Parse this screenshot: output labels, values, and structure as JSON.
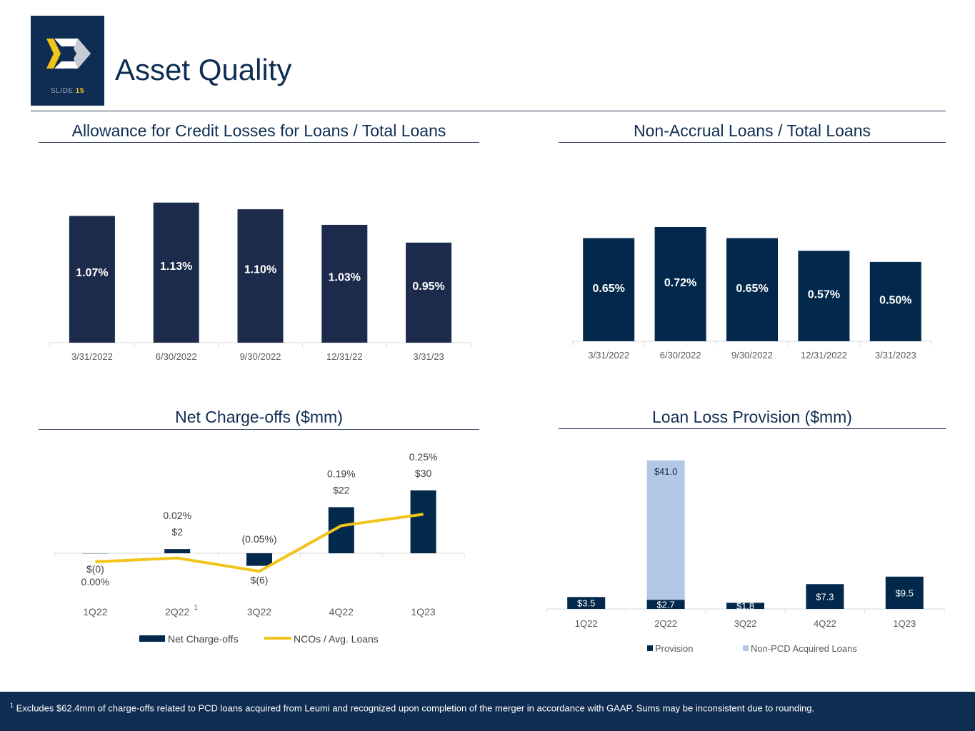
{
  "slide": {
    "label": "SLIDE",
    "number": "15",
    "title": "Asset Quality",
    "colors": {
      "navy": "#0f2d52",
      "navy_bar": "#1c2a4c",
      "gold": "#f2c318",
      "light_blue": "#b4c7e7"
    }
  },
  "sections": {
    "acl": "Allowance for Credit Losses for Loans / Total Loans",
    "nonaccrual": "Non-Accrual Loans / Total Loans",
    "nco": "Net Charge-offs ($mm)",
    "provision": "Loan Loss Provision ($mm)"
  },
  "footnote": {
    "marker": "1",
    "text": "Excludes $62.4mm of charge-offs related to PCD loans acquired from Leumi and recognized upon completion of the merger in accordance with GAAP.  Sums may be inconsistent due to rounding."
  },
  "chart_data": [
    {
      "id": "acl",
      "type": "bar",
      "title": "Allowance for Credit Losses for Loans / Total Loans",
      "categories": [
        "3/31/2022",
        "6/30/2022",
        "9/30/2022",
        "12/31/22",
        "3/31/23"
      ],
      "values": [
        1.07,
        1.13,
        1.1,
        1.03,
        0.95
      ],
      "labels": [
        "1.07%",
        "1.13%",
        "1.10%",
        "1.03%",
        "0.95%"
      ],
      "ylim": [
        0.5,
        1.2
      ]
    },
    {
      "id": "nonaccrual",
      "type": "bar",
      "title": "Non-Accrual Loans / Total Loans",
      "categories": [
        "3/31/2022",
        "6/30/2022",
        "9/30/2022",
        "12/31/2022",
        "3/31/2023"
      ],
      "values": [
        0.65,
        0.72,
        0.65,
        0.57,
        0.5
      ],
      "labels": [
        "0.65%",
        "0.72%",
        "0.65%",
        "0.57%",
        "0.50%"
      ],
      "ylim": [
        0,
        1.08
      ]
    },
    {
      "id": "nco",
      "type": "bar",
      "title": "Net Charge-offs ($mm)",
      "categories": [
        "1Q22",
        "2Q22",
        "3Q22",
        "4Q22",
        "1Q23"
      ],
      "category_superscript": {
        "index": 1,
        "text": "1"
      },
      "series": [
        {
          "name": "Net Charge-offs",
          "type": "bar",
          "values": [
            -0.1,
            2,
            -6,
            22,
            30
          ],
          "labels": [
            "$(0)",
            "$2",
            "$(6)",
            "$22",
            "$30"
          ]
        },
        {
          "name": "NCOs / Avg. Loans",
          "type": "line",
          "values": [
            0.0,
            0.02,
            -0.05,
            0.19,
            0.25
          ],
          "labels": [
            "0.00%",
            "0.02%",
            "(0.05%)",
            "0.19%",
            "0.25%"
          ]
        }
      ]
    },
    {
      "id": "provision",
      "type": "bar",
      "stacked": true,
      "title": "Loan Loss Provision ($mm)",
      "categories": [
        "1Q22",
        "2Q22",
        "3Q22",
        "4Q22",
        "1Q23"
      ],
      "series": [
        {
          "name": "Provision",
          "values": [
            3.5,
            2.7,
            1.8,
            7.3,
            9.5
          ],
          "labels": [
            "$3.5",
            "$2.7",
            "$1.8",
            "$7.3",
            "$9.5"
          ]
        },
        {
          "name": "Non-PCD Acquired Loans",
          "values": [
            0,
            41.0,
            0,
            0,
            0
          ],
          "labels": [
            "",
            "$41.0",
            "",
            "",
            ""
          ]
        }
      ]
    }
  ]
}
